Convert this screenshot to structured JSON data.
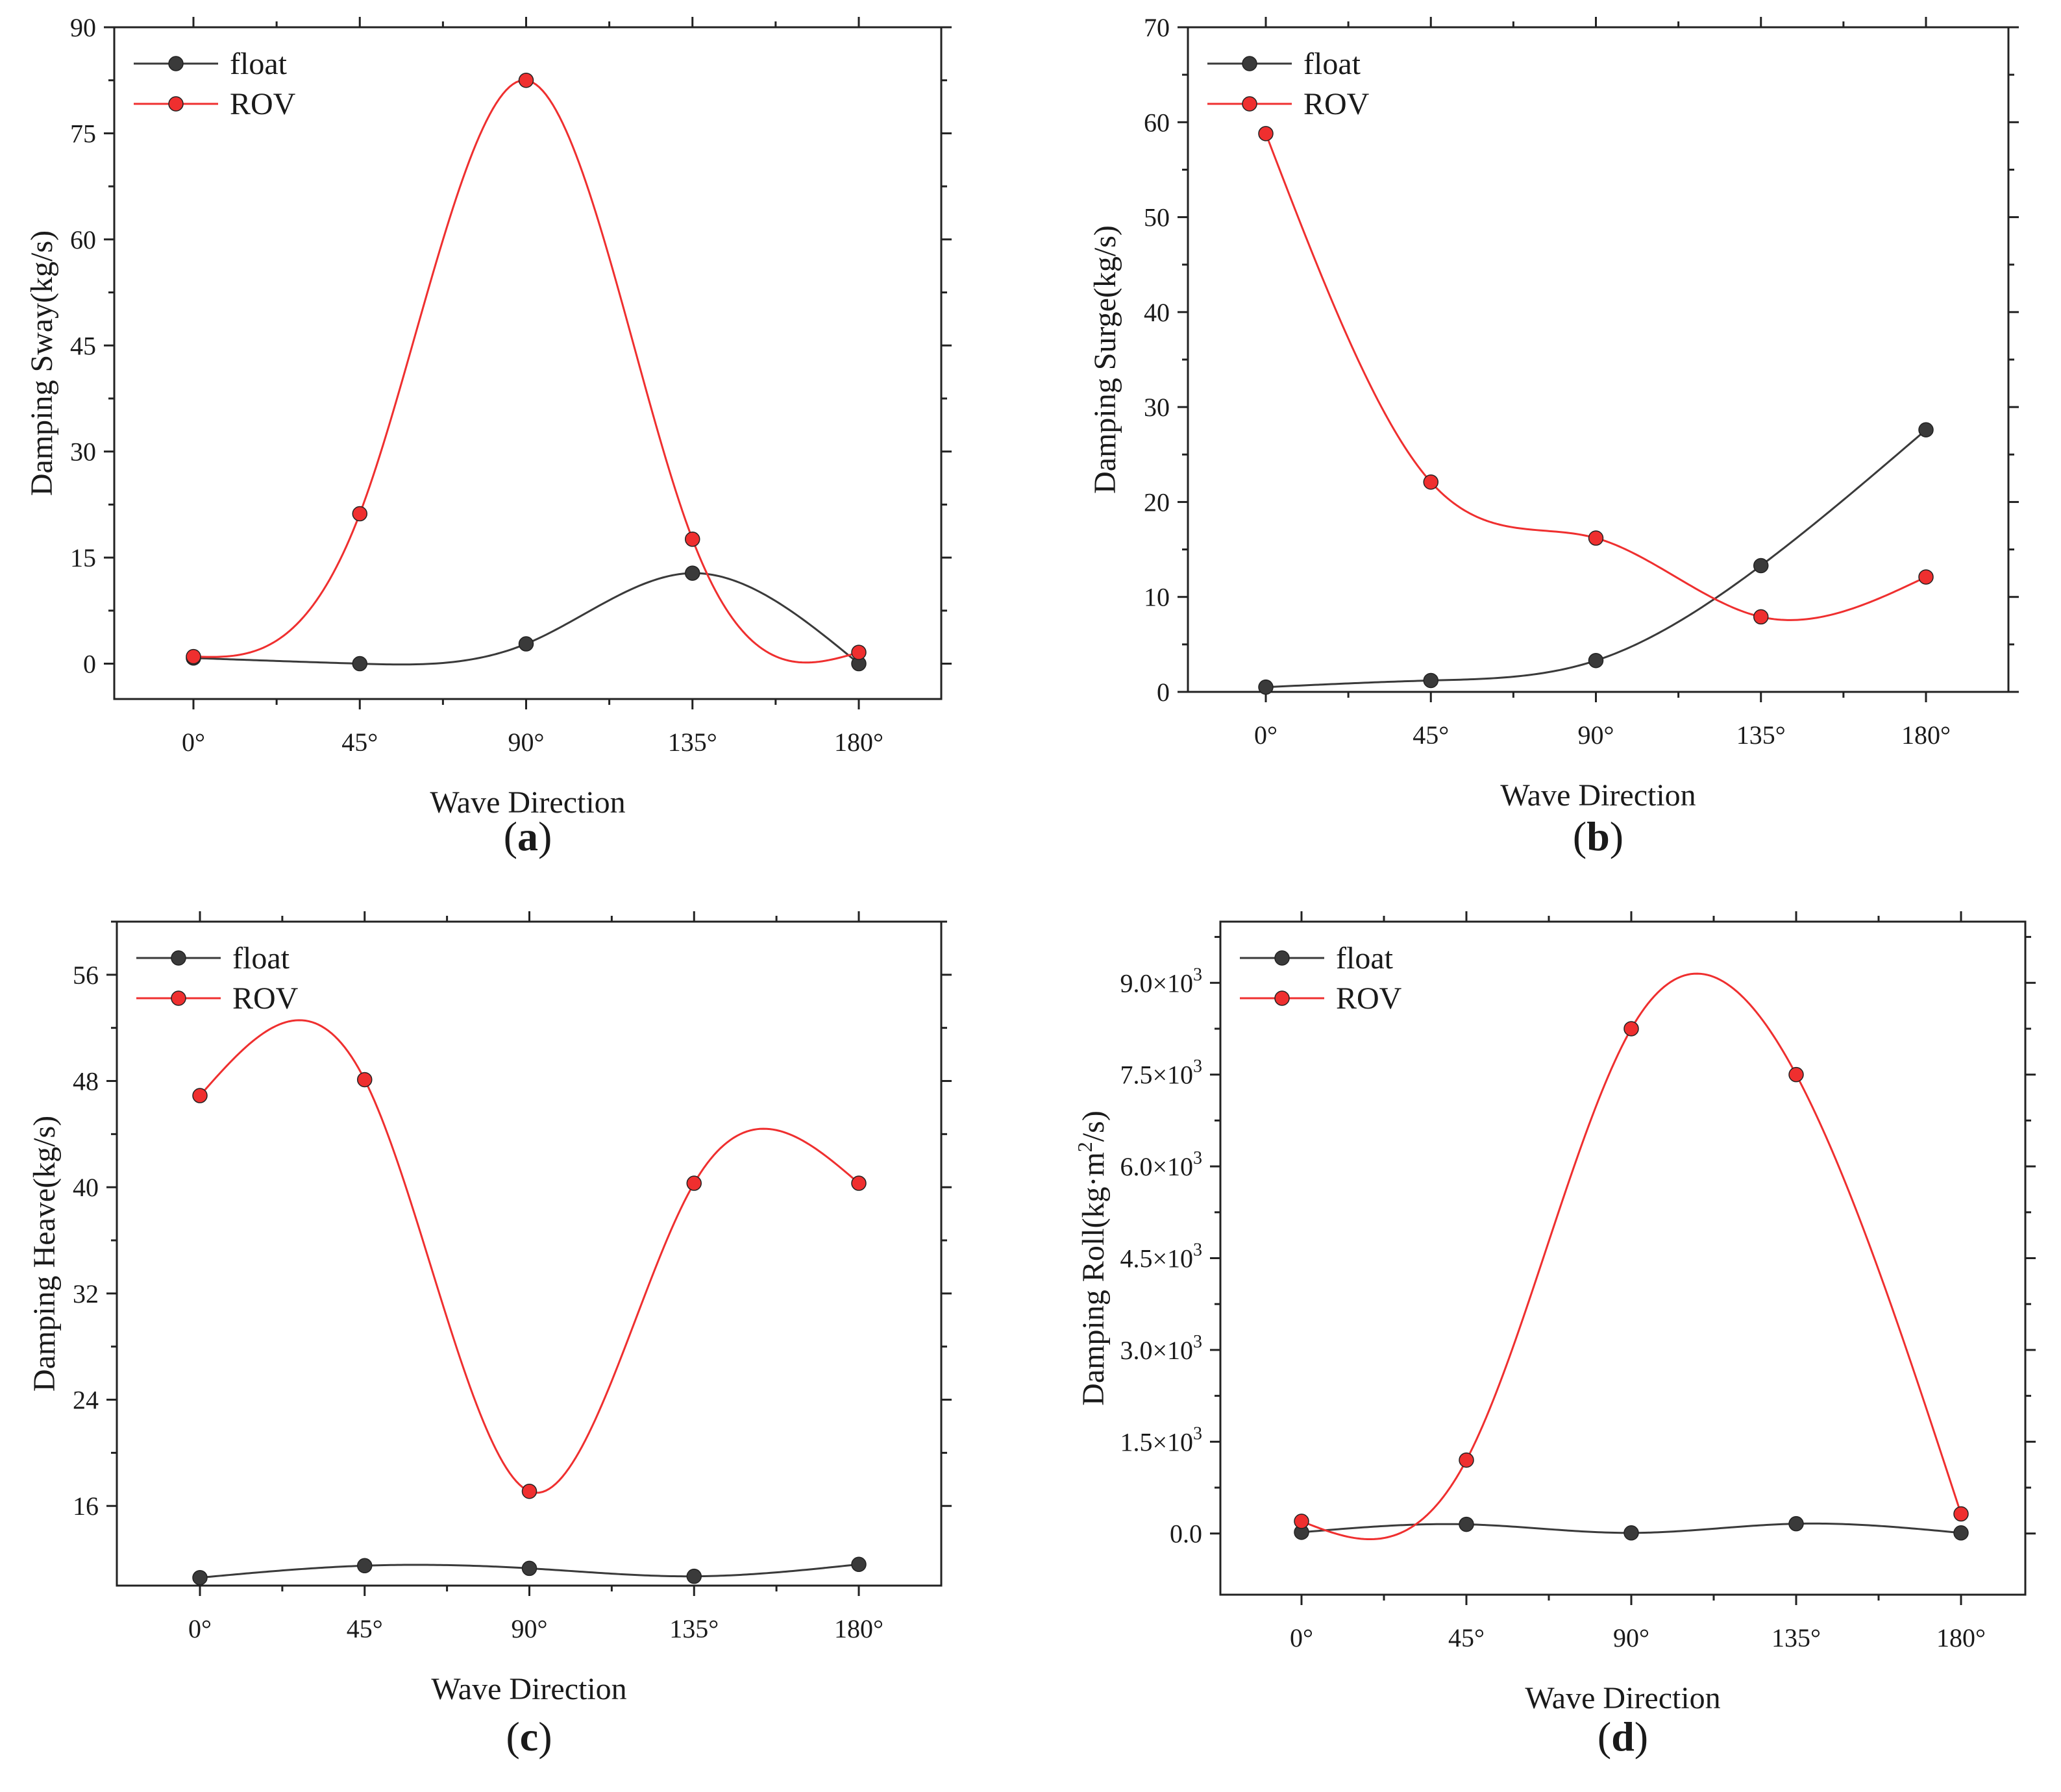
{
  "colors": {
    "float": "#3a3a3a",
    "rov": "#ef2f2f",
    "axis": "#222222"
  },
  "chart_data": [
    {
      "id": "a",
      "type": "line",
      "panel_label": "a",
      "xlabel": "Wave Direction",
      "ylabel": "Damping Sway(kg/s)",
      "categories": [
        "0°",
        "45°",
        "90°",
        "135°",
        "180°"
      ],
      "ylim": [
        -5,
        90
      ],
      "yticks": [
        0,
        15,
        30,
        45,
        60,
        75,
        90
      ],
      "ytick_labels": [
        "0",
        "15",
        "30",
        "45",
        "60",
        "75",
        "90"
      ],
      "legend_position": "top-left",
      "series": [
        {
          "name": "float",
          "color_key": "float",
          "values": [
            0.8,
            0,
            2.8,
            12.8,
            0
          ]
        },
        {
          "name": "ROV",
          "color_key": "rov",
          "values": [
            1.0,
            21.2,
            82.5,
            17.6,
            1.6
          ]
        }
      ]
    },
    {
      "id": "b",
      "type": "line",
      "panel_label": "b",
      "xlabel": "Wave Direction",
      "ylabel": "Damping Surge(kg/s)",
      "categories": [
        "0°",
        "45°",
        "90°",
        "135°",
        "180°"
      ],
      "ylim": [
        0,
        70
      ],
      "yticks": [
        0,
        10,
        20,
        30,
        40,
        50,
        60,
        70
      ],
      "ytick_labels": [
        "0",
        "10",
        "20",
        "30",
        "40",
        "50",
        "60",
        "70"
      ],
      "legend_position": "top-left",
      "series": [
        {
          "name": "float",
          "color_key": "float",
          "values": [
            0.5,
            1.2,
            3.3,
            13.3,
            27.6
          ]
        },
        {
          "name": "ROV",
          "color_key": "rov",
          "values": [
            58.8,
            22.1,
            16.2,
            7.9,
            12.1
          ]
        }
      ]
    },
    {
      "id": "c",
      "type": "line",
      "panel_label": "c",
      "xlabel": "Wave Direction",
      "ylabel": "Damping Heave(kg/s)",
      "categories": [
        "0°",
        "45°",
        "90°",
        "135°",
        "180°"
      ],
      "ylim": [
        10,
        60
      ],
      "yticks": [
        16,
        24,
        32,
        40,
        48,
        56
      ],
      "ytick_labels": [
        "16",
        "24",
        "32",
        "40",
        "48",
        "56"
      ],
      "legend_position": "top-left",
      "series": [
        {
          "name": "float",
          "color_key": "float",
          "values": [
            10.6,
            11.5,
            11.3,
            10.7,
            11.6
          ]
        },
        {
          "name": "ROV",
          "color_key": "rov",
          "values": [
            46.9,
            48.1,
            17.1,
            40.3,
            40.3
          ]
        }
      ]
    },
    {
      "id": "d",
      "type": "line",
      "panel_label": "d",
      "xlabel": "Wave Direction",
      "ylabel_prefix": "Damping Roll(kg·m",
      "ylabel_sup": "2",
      "ylabel_suffix": "/s)",
      "categories": [
        "0°",
        "45°",
        "90°",
        "135°",
        "180°"
      ],
      "ylim": [
        -1000,
        10000
      ],
      "yticks": [
        0,
        1500,
        3000,
        4500,
        6000,
        7500,
        9000
      ],
      "ytick_mantissa": [
        "0.0",
        "1.5×10",
        "3.0×10",
        "4.5×10",
        "6.0×10",
        "7.5×10",
        "9.0×10"
      ],
      "ytick_exponent": [
        "",
        "3",
        "3",
        "3",
        "3",
        "3",
        "3"
      ],
      "legend_position": "top-left",
      "series": [
        {
          "name": "float",
          "color_key": "float",
          "values": [
            20,
            150,
            10,
            160,
            10
          ]
        },
        {
          "name": "ROV",
          "color_key": "rov",
          "values": [
            200,
            1200,
            8250,
            7500,
            320
          ]
        }
      ]
    }
  ]
}
